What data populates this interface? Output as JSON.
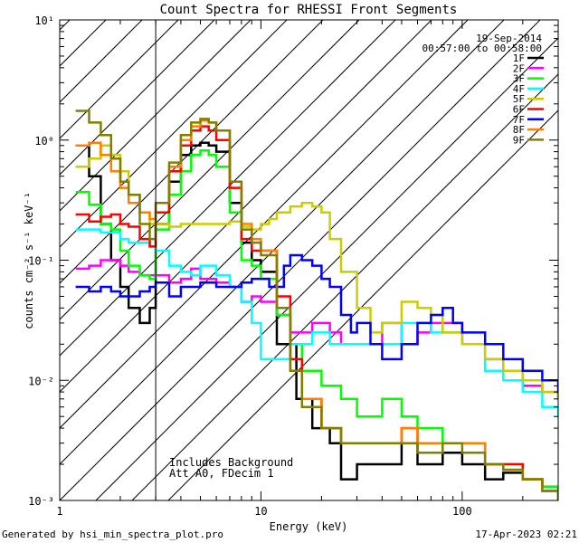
{
  "chart_data": {
    "type": "line",
    "title": "Count Spectra for RHESSI Front Segments",
    "xlabel": "Energy (keV)",
    "ylabel": "counts cm⁻² s⁻¹ keV⁻¹",
    "xscale": "log",
    "yscale": "log",
    "xlim": [
      1,
      300
    ],
    "ylim": [
      0.001,
      10
    ],
    "x_ticks": [
      {
        "v": 1,
        "label": "1"
      },
      {
        "v": 10,
        "label": "10"
      },
      {
        "v": 100,
        "label": "100"
      }
    ],
    "y_ticks": [
      {
        "v": 0.001,
        "label": "10⁻³"
      },
      {
        "v": 0.01,
        "label": "10⁻²"
      },
      {
        "v": 0.1,
        "label": "10⁻¹"
      },
      {
        "v": 1,
        "label": "10⁰"
      },
      {
        "v": 10,
        "label": "10¹"
      }
    ],
    "hatch_region": {
      "x_min": 1,
      "x_max": 3
    },
    "date_text": "19-Sep-2014",
    "time_range_text": "00:57:00 to 00:58:00",
    "annotation_lines": [
      "Includes Background",
      "Att A0, FDecim 1"
    ],
    "footer_left": "Generated by hsi_min_spectra_plot.pro",
    "footer_right": "17-Apr-2023 02:21",
    "series": [
      {
        "name": "1F",
        "color": "#000000",
        "x": [
          1.2,
          1.4,
          1.6,
          1.8,
          2,
          2.2,
          2.5,
          2.8,
          3.0,
          3.5,
          4,
          4.5,
          5,
          5.5,
          6,
          7,
          8,
          9,
          10,
          12,
          15,
          18,
          22,
          25,
          30,
          40,
          50,
          60,
          80,
          100,
          130,
          160,
          200,
          250,
          300
        ],
        "y": [
          0.9,
          0.5,
          0.2,
          0.1,
          0.06,
          0.04,
          0.03,
          0.04,
          0.2,
          0.45,
          0.75,
          0.9,
          0.95,
          0.9,
          0.8,
          0.3,
          0.14,
          0.1,
          0.08,
          0.02,
          0.007,
          0.004,
          0.003,
          0.0015,
          0.002,
          0.002,
          0.003,
          0.002,
          0.0025,
          0.002,
          0.0015,
          0.0017,
          0.0015,
          0.0013,
          0.0012
        ]
      },
      {
        "name": "2F",
        "color": "#ff00ff",
        "x": [
          1.2,
          1.4,
          1.6,
          1.8,
          2,
          2.2,
          2.5,
          2.8,
          3.0,
          3.5,
          4,
          4.5,
          5,
          6,
          7,
          8,
          9,
          10,
          12,
          14,
          18,
          22,
          25,
          30,
          40,
          50,
          60,
          70,
          80,
          100,
          130,
          160,
          200,
          250,
          300
        ],
        "y": [
          0.085,
          0.09,
          0.1,
          0.1,
          0.09,
          0.08,
          0.075,
          0.075,
          0.075,
          0.065,
          0.07,
          0.085,
          0.07,
          0.065,
          0.06,
          0.045,
          0.05,
          0.045,
          0.035,
          0.025,
          0.03,
          0.025,
          0.02,
          0.02,
          0.03,
          0.02,
          0.025,
          0.03,
          0.03,
          0.02,
          0.015,
          0.012,
          0.009,
          0.008,
          0.007
        ]
      },
      {
        "name": "3F",
        "color": "#00ff00",
        "x": [
          1.2,
          1.4,
          1.6,
          1.8,
          2,
          2.2,
          2.5,
          2.8,
          3.0,
          3.5,
          4,
          4.5,
          5,
          5.5,
          6,
          7,
          8,
          9,
          10,
          12,
          14,
          16,
          20,
          25,
          30,
          40,
          50,
          60,
          80,
          100,
          130,
          160,
          200,
          250,
          300
        ],
        "y": [
          0.37,
          0.29,
          0.2,
          0.18,
          0.12,
          0.09,
          0.075,
          0.07,
          0.18,
          0.35,
          0.55,
          0.75,
          0.82,
          0.75,
          0.6,
          0.25,
          0.1,
          0.09,
          0.07,
          0.035,
          0.02,
          0.012,
          0.009,
          0.007,
          0.005,
          0.007,
          0.005,
          0.004,
          0.003,
          0.003,
          0.002,
          0.002,
          0.0015,
          0.0013,
          0.0011
        ]
      },
      {
        "name": "4F",
        "color": "#00ffff",
        "x": [
          1.2,
          1.4,
          1.6,
          1.8,
          2,
          2.2,
          2.5,
          2.8,
          3.0,
          3.5,
          4,
          4.5,
          5,
          6,
          7,
          8,
          9,
          10,
          12,
          14,
          18,
          22,
          25,
          30,
          40,
          50,
          60,
          70,
          80,
          100,
          130,
          160,
          200,
          250,
          300
        ],
        "y": [
          0.18,
          0.18,
          0.17,
          0.17,
          0.15,
          0.14,
          0.14,
          0.13,
          0.12,
          0.09,
          0.08,
          0.075,
          0.09,
          0.075,
          0.06,
          0.045,
          0.03,
          0.015,
          0.015,
          0.02,
          0.025,
          0.02,
          0.02,
          0.02,
          0.02,
          0.03,
          0.03,
          0.025,
          0.025,
          0.02,
          0.012,
          0.01,
          0.008,
          0.006,
          0.005
        ]
      },
      {
        "name": "5F",
        "color": "#cccc00",
        "x": [
          1.2,
          1.4,
          1.6,
          1.8,
          2,
          2.2,
          2.5,
          2.8,
          3.0,
          3.5,
          4,
          4.5,
          5,
          6,
          7,
          8,
          9,
          10,
          11,
          12,
          14,
          16,
          18,
          20,
          22,
          25,
          30,
          35,
          40,
          50,
          60,
          70,
          80,
          100,
          130,
          160,
          200,
          250,
          300
        ],
        "y": [
          0.6,
          0.7,
          0.9,
          0.75,
          0.55,
          0.35,
          0.25,
          0.2,
          0.2,
          0.19,
          0.2,
          0.2,
          0.2,
          0.2,
          0.21,
          0.19,
          0.18,
          0.2,
          0.22,
          0.25,
          0.28,
          0.3,
          0.28,
          0.25,
          0.15,
          0.08,
          0.04,
          0.025,
          0.03,
          0.045,
          0.04,
          0.035,
          0.025,
          0.02,
          0.015,
          0.012,
          0.01,
          0.008,
          0.007
        ]
      },
      {
        "name": "6F",
        "color": "#ff0000",
        "x": [
          1.2,
          1.4,
          1.6,
          1.8,
          2,
          2.2,
          2.5,
          2.8,
          3.0,
          3.5,
          4,
          4.5,
          5,
          5.5,
          6,
          7,
          8,
          9,
          10,
          12,
          14,
          16,
          20,
          25,
          30,
          40,
          50,
          60,
          80,
          100,
          130,
          160,
          200,
          250,
          300
        ],
        "y": [
          0.24,
          0.21,
          0.23,
          0.24,
          0.2,
          0.19,
          0.15,
          0.13,
          0.25,
          0.55,
          0.9,
          1.2,
          1.3,
          1.2,
          1.0,
          0.4,
          0.15,
          0.12,
          0.12,
          0.05,
          0.015,
          0.007,
          0.004,
          0.003,
          0.003,
          0.003,
          0.004,
          0.003,
          0.003,
          0.003,
          0.002,
          0.002,
          0.0015,
          0.0012,
          0.001
        ]
      },
      {
        "name": "7F",
        "color": "#0000ff",
        "x": [
          1.2,
          1.4,
          1.6,
          1.8,
          2,
          2.2,
          2.5,
          2.8,
          3.0,
          3.5,
          4,
          4.5,
          5,
          6,
          7,
          8,
          9,
          10,
          11,
          12,
          13,
          14,
          16,
          18,
          20,
          22,
          25,
          28,
          30,
          35,
          40,
          50,
          60,
          70,
          80,
          90,
          100,
          130,
          160,
          200,
          250,
          300
        ],
        "y": [
          0.06,
          0.055,
          0.06,
          0.055,
          0.05,
          0.05,
          0.055,
          0.06,
          0.065,
          0.05,
          0.06,
          0.06,
          0.065,
          0.06,
          0.06,
          0.065,
          0.07,
          0.07,
          0.06,
          0.06,
          0.09,
          0.11,
          0.1,
          0.09,
          0.07,
          0.06,
          0.035,
          0.025,
          0.03,
          0.02,
          0.015,
          0.02,
          0.03,
          0.035,
          0.04,
          0.03,
          0.025,
          0.02,
          0.015,
          0.012,
          0.01,
          0.008
        ]
      },
      {
        "name": "8F",
        "color": "#ff8000",
        "x": [
          1.2,
          1.4,
          1.6,
          1.8,
          2,
          2.2,
          2.5,
          2.8,
          3.0,
          3.5,
          4,
          4.5,
          5,
          5.5,
          6,
          7,
          8,
          9,
          10,
          12,
          14,
          16,
          20,
          25,
          30,
          40,
          50,
          60,
          80,
          100,
          130,
          160,
          200,
          250,
          300
        ],
        "y": [
          0.9,
          0.95,
          0.75,
          0.55,
          0.4,
          0.3,
          0.25,
          0.22,
          0.3,
          0.6,
          1.0,
          1.3,
          1.45,
          1.4,
          1.2,
          0.45,
          0.2,
          0.15,
          0.12,
          0.04,
          0.012,
          0.007,
          0.004,
          0.003,
          0.003,
          0.003,
          0.004,
          0.003,
          0.003,
          0.003,
          0.002,
          0.0018,
          0.0015,
          0.0012,
          0.001
        ]
      },
      {
        "name": "9F",
        "color": "#808000",
        "x": [
          1.2,
          1.4,
          1.6,
          1.8,
          2,
          2.2,
          2.5,
          2.8,
          3.0,
          3.5,
          4,
          4.5,
          5,
          5.5,
          6,
          7,
          8,
          9,
          10,
          12,
          14,
          16,
          20,
          25,
          30,
          40,
          50,
          60,
          80,
          100,
          130,
          160,
          200,
          250,
          300
        ],
        "y": [
          1.75,
          1.4,
          1.1,
          0.7,
          0.45,
          0.35,
          0.2,
          0.15,
          0.3,
          0.65,
          1.1,
          1.4,
          1.5,
          1.4,
          1.2,
          0.45,
          0.18,
          0.14,
          0.11,
          0.04,
          0.012,
          0.006,
          0.004,
          0.003,
          0.003,
          0.003,
          0.003,
          0.0025,
          0.003,
          0.0025,
          0.002,
          0.0018,
          0.0015,
          0.0012,
          0.001
        ]
      }
    ]
  }
}
